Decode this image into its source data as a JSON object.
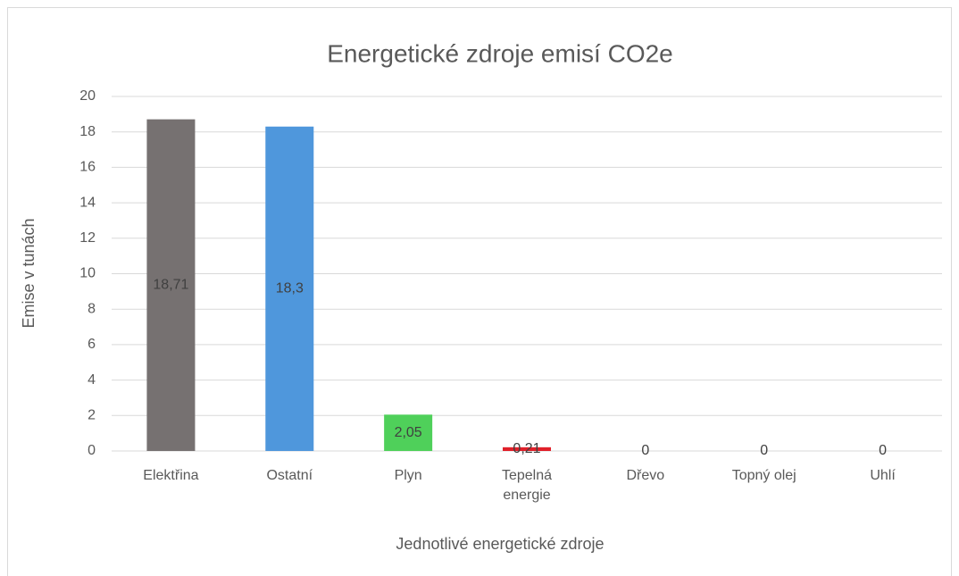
{
  "chart_data": {
    "type": "bar",
    "title": "Energetické zdroje emisí CO2e",
    "x_label": "Jednotlivé energetické zdroje",
    "y_label": "Emise v tunách",
    "categories": [
      "Elektřina",
      "Ostatní",
      "Plyn",
      "Tepelná energie",
      "Dřevo",
      "Topný olej",
      "Uhlí"
    ],
    "values": [
      18.71,
      18.3,
      2.05,
      0.21,
      0,
      0,
      0
    ],
    "value_labels": [
      "18,71",
      "18,3",
      "2,05",
      "0,21",
      "0",
      "0",
      "0"
    ],
    "colors": [
      "#767171",
      "#4f97dc",
      "#4fd05a",
      "#e0202a",
      "#a5a5a5",
      "#a5a5a5",
      "#a5a5a5"
    ],
    "ylim": [
      0,
      20
    ],
    "yticks": [
      0,
      2,
      4,
      6,
      8,
      10,
      12,
      14,
      16,
      18,
      20
    ],
    "grid": true
  }
}
